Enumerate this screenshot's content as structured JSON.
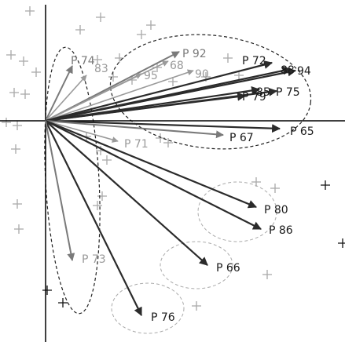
{
  "colors": {
    "axis": "#000000",
    "dark_arrow": "#2b2b2b",
    "grey_arrow": "#7a7a7a",
    "light_label": "#9a9a9a",
    "dark_label": "#1a1a1a",
    "plus_light": "#a8a8a8",
    "plus_dark": "#111111",
    "dashed_dark": "#222222",
    "dashed_light": "#aaaaaa"
  },
  "arrows": [
    {
      "id": "p74",
      "label": "P 74",
      "tone": "grey"
    },
    {
      "id": "p83",
      "label": "83",
      "tone": "light"
    },
    {
      "id": "p92",
      "label": "P 92",
      "tone": "grey"
    },
    {
      "id": "p68",
      "label": "68",
      "tone": "light"
    },
    {
      "id": "p90",
      "label": "90",
      "tone": "light"
    },
    {
      "id": "p95",
      "label": "95",
      "tone": "light"
    },
    {
      "id": "p72",
      "label": "P 72",
      "tone": "dark"
    },
    {
      "id": "p88",
      "label": "88",
      "tone": "dark"
    },
    {
      "id": "p94",
      "label": "94",
      "tone": "dark"
    },
    {
      "id": "p85",
      "label": "85",
      "tone": "dark"
    },
    {
      "id": "p75",
      "label": "P 75",
      "tone": "dark"
    },
    {
      "id": "p79",
      "label": "P 79",
      "tone": "dark"
    },
    {
      "id": "p65",
      "label": "P 65",
      "tone": "dark"
    },
    {
      "id": "p67",
      "label": "P 67",
      "tone": "grey"
    },
    {
      "id": "p71",
      "label": "P 71",
      "tone": "light"
    },
    {
      "id": "p80",
      "label": "P 80",
      "tone": "dark"
    },
    {
      "id": "p86",
      "label": "P 86",
      "tone": "dark"
    },
    {
      "id": "p66",
      "label": "P 66",
      "tone": "dark"
    },
    {
      "id": "p76",
      "label": "P 76",
      "tone": "dark"
    },
    {
      "id": "p73",
      "label": "P 73",
      "tone": "grey"
    }
  ]
}
